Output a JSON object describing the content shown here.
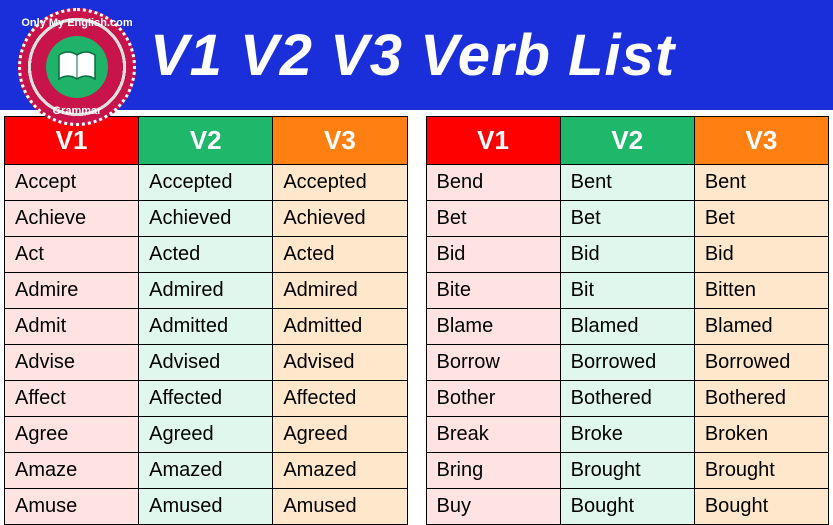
{
  "banner": {
    "title": "V1 V2 V3 Verb List",
    "badge_top": "Only My English.com",
    "badge_bottom": "Grammar",
    "bg_color": "#1a2fd9"
  },
  "headers": {
    "v1": "V1",
    "v2": "V2",
    "v3": "V3"
  },
  "colors": {
    "th_v1": "#ff0000",
    "th_v2": "#1fb86a",
    "th_v3": "#ff7f11",
    "td_v1": "#ffe3e3",
    "td_v2": "#dff7ec",
    "td_v3": "#ffe7cc",
    "border": "#000000"
  },
  "tables": [
    {
      "rows": [
        {
          "v1": "Accept",
          "v2": "Accepted",
          "v3": "Accepted"
        },
        {
          "v1": "Achieve",
          "v2": "Achieved",
          "v3": "Achieved"
        },
        {
          "v1": "Act",
          "v2": "Acted",
          "v3": "Acted"
        },
        {
          "v1": "Admire",
          "v2": "Admired",
          "v3": "Admired"
        },
        {
          "v1": "Admit",
          "v2": "Admitted",
          "v3": "Admitted"
        },
        {
          "v1": "Advise",
          "v2": "Advised",
          "v3": "Advised"
        },
        {
          "v1": "Affect",
          "v2": "Affected",
          "v3": "Affected"
        },
        {
          "v1": "Agree",
          "v2": "Agreed",
          "v3": "Agreed"
        },
        {
          "v1": "Amaze",
          "v2": "Amazed",
          "v3": "Amazed"
        },
        {
          "v1": "Amuse",
          "v2": "Amused",
          "v3": "Amused"
        }
      ]
    },
    {
      "rows": [
        {
          "v1": "Bend",
          "v2": "Bent",
          "v3": "Bent"
        },
        {
          "v1": "Bet",
          "v2": "Bet",
          "v3": "Bet"
        },
        {
          "v1": "Bid",
          "v2": "Bid",
          "v3": "Bid"
        },
        {
          "v1": "Bite",
          "v2": "Bit",
          "v3": "Bitten"
        },
        {
          "v1": "Blame",
          "v2": "Blamed",
          "v3": "Blamed"
        },
        {
          "v1": "Borrow",
          "v2": "Borrowed",
          "v3": "Borrowed"
        },
        {
          "v1": "Bother",
          "v2": "Bothered",
          "v3": "Bothered"
        },
        {
          "v1": "Break",
          "v2": "Broke",
          "v3": "Broken"
        },
        {
          "v1": "Bring",
          "v2": "Brought",
          "v3": "Brought"
        },
        {
          "v1": "Buy",
          "v2": "Bought",
          "v3": "Bought"
        }
      ]
    }
  ]
}
